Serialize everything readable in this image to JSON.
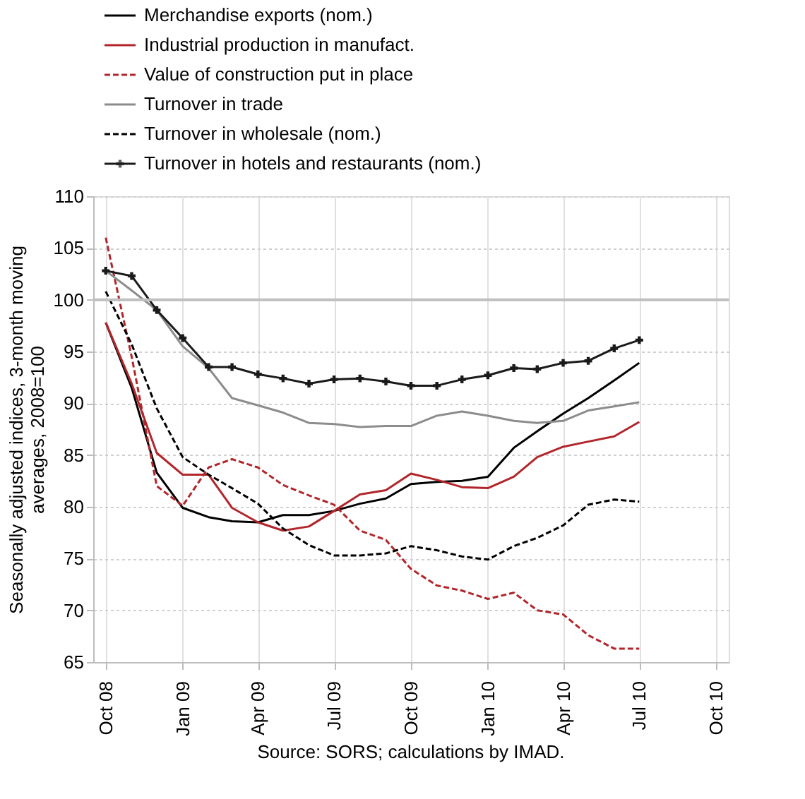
{
  "chart_data": {
    "type": "line",
    "ylabel": "Seasonally adjusted indices, 3-month moving averages, 2008=100",
    "annotations": [
      "Source: SORS; calculations by IMAD."
    ],
    "x": [
      "2008-10",
      "2008-11",
      "2008-12",
      "2009-01",
      "2009-02",
      "2009-03",
      "2009-04",
      "2009-05",
      "2009-06",
      "2009-07",
      "2009-08",
      "2009-09",
      "2009-10",
      "2009-11",
      "2009-12",
      "2010-01",
      "2010-02",
      "2010-03",
      "2010-04",
      "2010-05",
      "2010-06",
      "2010-07"
    ],
    "series": [
      {
        "name": "Merchandise exports (nom.)",
        "color": "#000000",
        "line_style": "solid",
        "values": [
          97.8,
          91.5,
          83.3,
          79.9,
          79.0,
          78.6,
          78.5,
          79.2,
          79.2,
          79.6,
          80.3,
          80.8,
          82.2,
          82.4,
          82.5,
          82.9,
          85.7,
          87.3,
          89.0,
          90.5,
          92.2,
          93.9
        ]
      },
      {
        "name": "Industrial production in manufact.",
        "color": "#b2262b",
        "line_style": "solid",
        "values": [
          97.8,
          91.9,
          85.2,
          83.1,
          83.1,
          79.9,
          78.5,
          77.7,
          78.1,
          79.6,
          81.2,
          81.6,
          83.2,
          82.6,
          81.9,
          81.8,
          82.9,
          84.8,
          85.8,
          86.3,
          86.8,
          88.2
        ]
      },
      {
        "name": "Value of construction put in place",
        "color": "#b2262b",
        "line_style": "dashed",
        "values": [
          106.0,
          94.5,
          82.0,
          80.1,
          83.8,
          84.6,
          83.8,
          82.1,
          81.1,
          80.2,
          77.7,
          76.8,
          74.0,
          72.4,
          71.9,
          71.1,
          71.7,
          70.0,
          69.6,
          67.6,
          66.3,
          66.3
        ]
      },
      {
        "name": "Turnover in trade",
        "color": "#8c8c8c",
        "line_style": "solid",
        "values": [
          102.8,
          100.9,
          99.0,
          95.5,
          93.4,
          90.5,
          89.8,
          89.1,
          88.1,
          88.0,
          87.7,
          87.8,
          87.8,
          88.8,
          89.2,
          88.8,
          88.3,
          88.1,
          88.3,
          89.3,
          89.7,
          90.1
        ]
      },
      {
        "name": "Turnover in wholesale (nom.)",
        "color": "#000000",
        "line_style": "dashed",
        "values": [
          100.8,
          95.7,
          89.5,
          84.8,
          83.1,
          81.8,
          80.3,
          77.9,
          76.3,
          75.3,
          75.3,
          75.5,
          76.2,
          75.8,
          75.2,
          74.9,
          76.2,
          77.0,
          78.2,
          80.2,
          80.7,
          80.5
        ]
      },
      {
        "name": "Turnover in hotels and restaurants (nom.)",
        "color": "#1a1a1a",
        "line_style": "solid",
        "marker": "cross",
        "values": [
          102.8,
          102.3,
          99.0,
          96.3,
          93.5,
          93.5,
          92.8,
          92.4,
          91.9,
          92.3,
          92.4,
          92.1,
          91.7,
          91.7,
          92.3,
          92.7,
          93.4,
          93.3,
          93.9,
          94.1,
          95.3,
          96.1
        ]
      }
    ],
    "xlim": [
      "2008-09-16",
      "2010-10-16"
    ],
    "xticks": [
      {
        "value": "2008-10",
        "label": "Oct 08"
      },
      {
        "value": "2009-01",
        "label": "Jan 09"
      },
      {
        "value": "2009-04",
        "label": "Apr 09"
      },
      {
        "value": "2009-07",
        "label": "Jul 09"
      },
      {
        "value": "2009-10",
        "label": "Oct 09"
      },
      {
        "value": "2010-01",
        "label": "Jan 10"
      },
      {
        "value": "2010-04",
        "label": "Apr 10"
      },
      {
        "value": "2010-07",
        "label": "Jul 10"
      },
      {
        "value": "2010-10",
        "label": "Oct 10"
      }
    ],
    "ylim": [
      65,
      110
    ],
    "yticks": [
      65,
      70,
      75,
      80,
      85,
      90,
      95,
      100,
      105,
      110
    ],
    "ref_lines": [
      {
        "axis": "y",
        "value": 100,
        "label": null,
        "color": "#bfbfbf"
      }
    ],
    "grid": true,
    "legend": "top left"
  }
}
